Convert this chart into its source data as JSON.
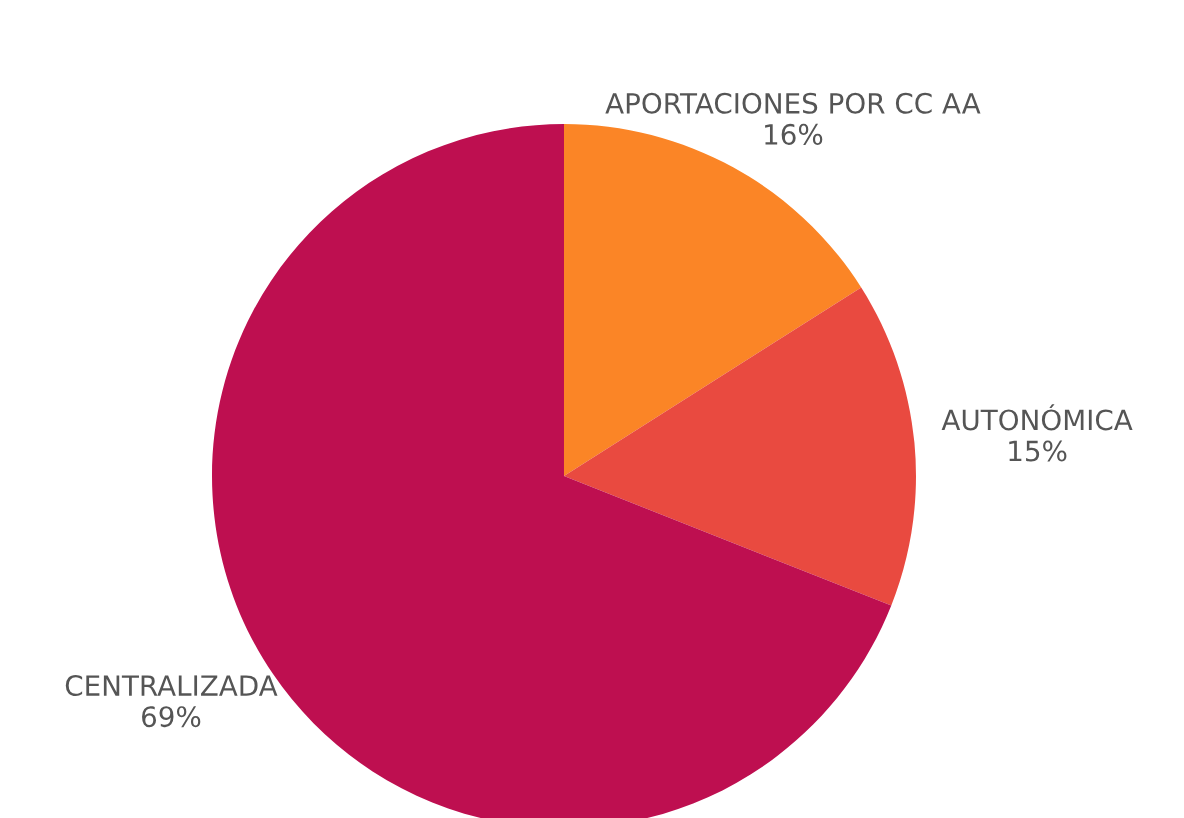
{
  "chart_data": {
    "type": "pie",
    "categories": [
      "APORTACIONES POR CC AA",
      "AUTONÓMICA",
      "CENTRALIZADA"
    ],
    "values": [
      16,
      15,
      69
    ],
    "colors": [
      "#fb8526",
      "#e94a40",
      "#be0f50"
    ],
    "value_labels": [
      "16%",
      "15%",
      "69%"
    ],
    "legend": false
  }
}
